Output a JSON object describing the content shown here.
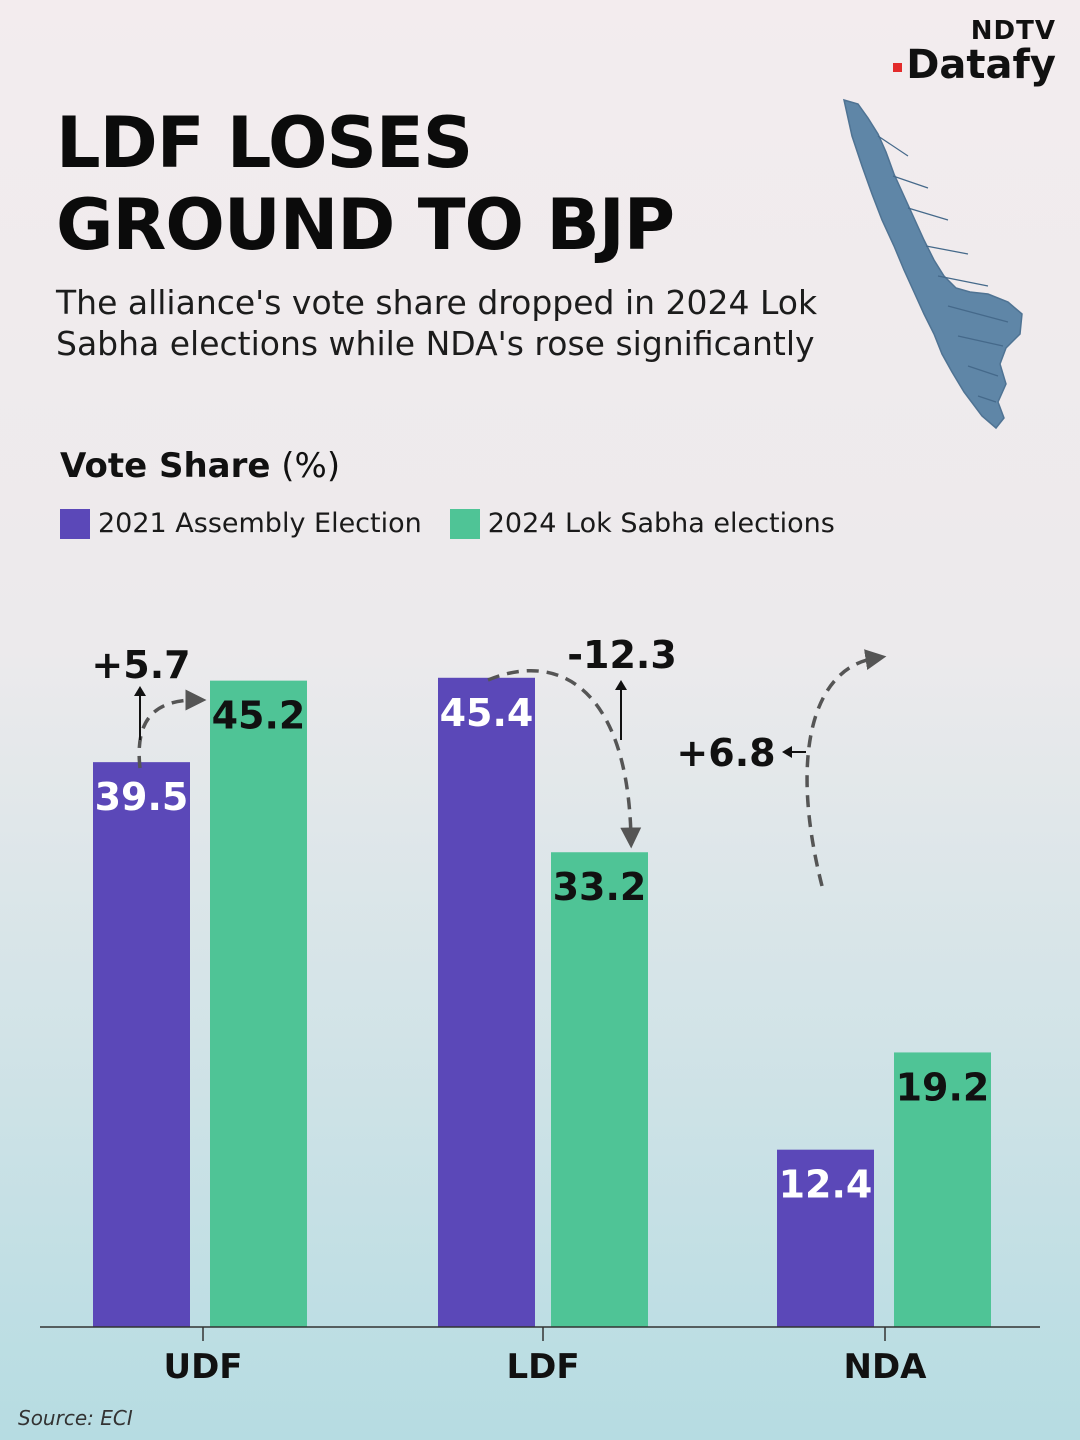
{
  "brand": {
    "top": "NDTV",
    "name": "Datafy"
  },
  "title_lines": [
    "LDF LOSES",
    "GROUND TO BJP"
  ],
  "subtitle": "The alliance's vote share dropped in 2024 Lok Sabha elections while NDA's rose significantly",
  "axis_title": {
    "bold": "Vote Share",
    "unit": " (%)"
  },
  "colors": {
    "series_2021": "#5b48b8",
    "series_2024": "#4fc496",
    "map": "#5f86a7",
    "background_top": "#f3ecee",
    "background_bottom": "#b6dce2",
    "red_dot": "#e32b2b"
  },
  "source": "Source: ECI",
  "chart_data": {
    "type": "bar",
    "title": "Vote Share (%)",
    "xlabel": "",
    "ylabel": "Vote Share (%)",
    "categories": [
      "UDF",
      "LDF",
      "NDA"
    ],
    "series": [
      {
        "name": "2021 Assembly Election",
        "values": [
          39.5,
          45.4,
          12.4
        ],
        "labels": [
          "39.5",
          "45.4",
          "12.4"
        ]
      },
      {
        "name": "2024 Lok Sabha elections",
        "values": [
          45.2,
          33.2,
          19.2
        ],
        "labels": [
          "45.2",
          "33.2",
          "19.2"
        ]
      }
    ],
    "changes": [
      {
        "category": "UDF",
        "value": 5.7,
        "label": "+5.7"
      },
      {
        "category": "LDF",
        "value": -12.3,
        "label": "-12.3"
      },
      {
        "category": "NDA",
        "value": 6.8,
        "label": "+6.8"
      }
    ],
    "ylim": [
      0,
      50
    ],
    "grid": false,
    "legend": "top-left"
  }
}
